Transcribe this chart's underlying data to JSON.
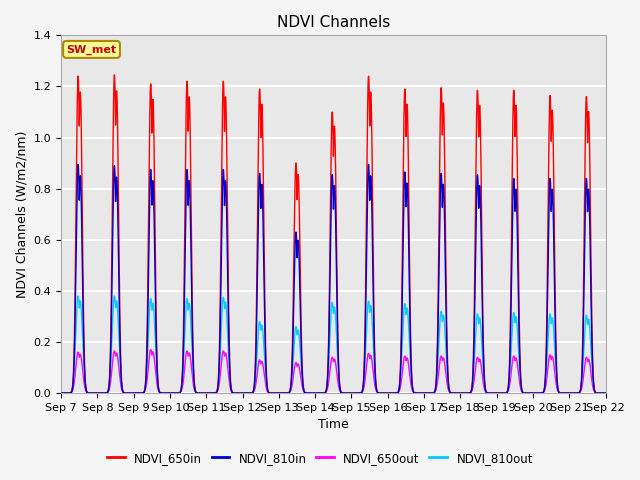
{
  "title": "NDVI Channels",
  "xlabel": "Time",
  "ylabel": "NDVI Channels (W/m2/nm)",
  "ylim": [
    0.0,
    1.4
  ],
  "plot_bg_color": "#e8e8e8",
  "fig_bg_color": "#f5f5f5",
  "grid_color": "#ffffff",
  "legend_labels": [
    "NDVI_650in",
    "NDVI_810in",
    "NDVI_650out",
    "NDVI_810out"
  ],
  "line_colors": [
    "#ff0000",
    "#0000cc",
    "#ff00ff",
    "#00ccff"
  ],
  "station_label": "SW_met",
  "x_tick_labels": [
    "Sep 7",
    "Sep 8",
    "Sep 9",
    "Sep 10",
    "Sep 11",
    "Sep 12",
    "Sep 13",
    "Sep 14",
    "Sep 15",
    "Sep 16",
    "Sep 17",
    "Sep 18",
    "Sep 19",
    "Sep 20",
    "Sep 21",
    "Sep 22"
  ],
  "num_days": 15,
  "peak_heights_650in": [
    1.24,
    1.245,
    1.21,
    1.22,
    1.22,
    1.19,
    0.9,
    1.1,
    1.24,
    1.19,
    1.195,
    1.185,
    1.185,
    1.165,
    1.16
  ],
  "peak_heights_810in": [
    0.895,
    0.89,
    0.875,
    0.875,
    0.875,
    0.86,
    0.63,
    0.855,
    0.895,
    0.865,
    0.86,
    0.855,
    0.84,
    0.84,
    0.84
  ],
  "peak_heights_650out": [
    0.16,
    0.165,
    0.17,
    0.165,
    0.165,
    0.13,
    0.12,
    0.14,
    0.155,
    0.145,
    0.145,
    0.14,
    0.145,
    0.15,
    0.14
  ],
  "peak_heights_810out": [
    0.38,
    0.38,
    0.37,
    0.37,
    0.375,
    0.28,
    0.26,
    0.355,
    0.36,
    0.35,
    0.32,
    0.31,
    0.315,
    0.31,
    0.305
  ],
  "title_fontsize": 11,
  "axis_fontsize": 9,
  "tick_fontsize": 8
}
